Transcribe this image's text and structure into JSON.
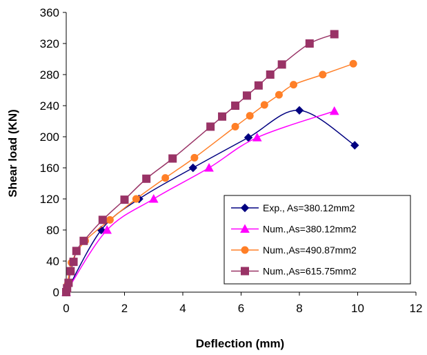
{
  "chart_data": {
    "type": "line",
    "xlabel": "Deflection (mm)",
    "ylabel": "Shear load (KN)",
    "xlim": [
      0,
      12
    ],
    "ylim": [
      0,
      360
    ],
    "xticks": [
      0,
      2,
      4,
      6,
      8,
      10,
      12
    ],
    "yticks": [
      0,
      40,
      80,
      120,
      160,
      200,
      240,
      280,
      320,
      360
    ],
    "grid": false,
    "legend_position": "bottom-right",
    "series": [
      {
        "name": "Exp., As=380.12mm2",
        "color": "#000080",
        "marker": "diamond",
        "points": [
          [
            0,
            0
          ],
          [
            1.2,
            80
          ],
          [
            2.5,
            120
          ],
          [
            4.35,
            160
          ],
          [
            6.25,
            199
          ],
          [
            8,
            234
          ],
          [
            9.9,
            189
          ]
        ]
      },
      {
        "name": "Num.,As=380.12mm2",
        "color": "#ff00ff",
        "marker": "triangle",
        "points": [
          [
            0,
            0
          ],
          [
            1.4,
            80
          ],
          [
            3.0,
            120
          ],
          [
            4.9,
            160
          ],
          [
            6.55,
            199
          ],
          [
            9.2,
            233
          ]
        ]
      },
      {
        "name": "Num.,As=490.87mm2",
        "color": "#ff7f27",
        "marker": "circle",
        "points": [
          [
            0,
            0
          ],
          [
            0.05,
            10
          ],
          [
            0.18,
            38
          ],
          [
            0.65,
            66
          ],
          [
            1.5,
            93
          ],
          [
            2.4,
            120
          ],
          [
            3.4,
            147
          ],
          [
            4.4,
            173
          ],
          [
            5.8,
            213
          ],
          [
            6.3,
            227
          ],
          [
            6.8,
            241
          ],
          [
            7.3,
            254
          ],
          [
            7.8,
            267
          ],
          [
            8.8,
            280
          ],
          [
            9.85,
            294
          ]
        ]
      },
      {
        "name": "Num.,As=615.75mm2",
        "color": "#993366",
        "marker": "square",
        "points": [
          [
            0,
            0
          ],
          [
            0.03,
            5
          ],
          [
            0.08,
            12
          ],
          [
            0.15,
            27
          ],
          [
            0.25,
            39
          ],
          [
            0.35,
            53
          ],
          [
            0.6,
            66
          ],
          [
            1.25,
            93
          ],
          [
            2.0,
            119
          ],
          [
            2.75,
            146
          ],
          [
            3.65,
            172
          ],
          [
            4.95,
            213
          ],
          [
            5.35,
            226
          ],
          [
            5.8,
            240
          ],
          [
            6.2,
            253
          ],
          [
            6.6,
            266
          ],
          [
            7.0,
            280
          ],
          [
            7.4,
            293
          ],
          [
            8.35,
            320
          ],
          [
            9.2,
            332
          ]
        ]
      }
    ]
  }
}
